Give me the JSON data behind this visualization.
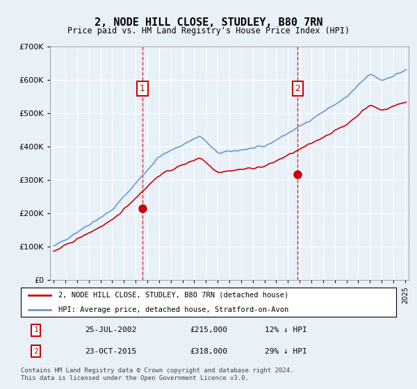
{
  "title": "2, NODE HILL CLOSE, STUDLEY, B80 7RN",
  "subtitle": "Price paid vs. HM Land Registry's House Price Index (HPI)",
  "legend_line1": "2, NODE HILL CLOSE, STUDLEY, B80 7RN (detached house)",
  "legend_line2": "HPI: Average price, detached house, Stratford-on-Avon",
  "annotation1_label": "1",
  "annotation1_date": "25-JUL-2002",
  "annotation1_price": "£215,000",
  "annotation1_hpi": "12% ↓ HPI",
  "annotation1_year": 2002.56,
  "annotation1_value": 215000,
  "annotation2_label": "2",
  "annotation2_date": "23-OCT-2015",
  "annotation2_price": "£318,000",
  "annotation2_hpi": "29% ↓ HPI",
  "annotation2_year": 2015.81,
  "annotation2_value": 318000,
  "footer_line1": "Contains HM Land Registry data © Crown copyright and database right 2024.",
  "footer_line2": "This data is licensed under the Open Government Licence v3.0.",
  "bg_color": "#e8f0f8",
  "plot_bg_color": "#e8f0f8",
  "red_color": "#cc0000",
  "blue_color": "#6699cc",
  "grid_color": "#ffffff",
  "annotation_box_color": "#cc0000",
  "dashed_line_color": "#cc0000",
  "ylim_min": 0,
  "ylim_max": 700000,
  "ytick_step": 100000,
  "xstart": 1995,
  "xend": 2025
}
